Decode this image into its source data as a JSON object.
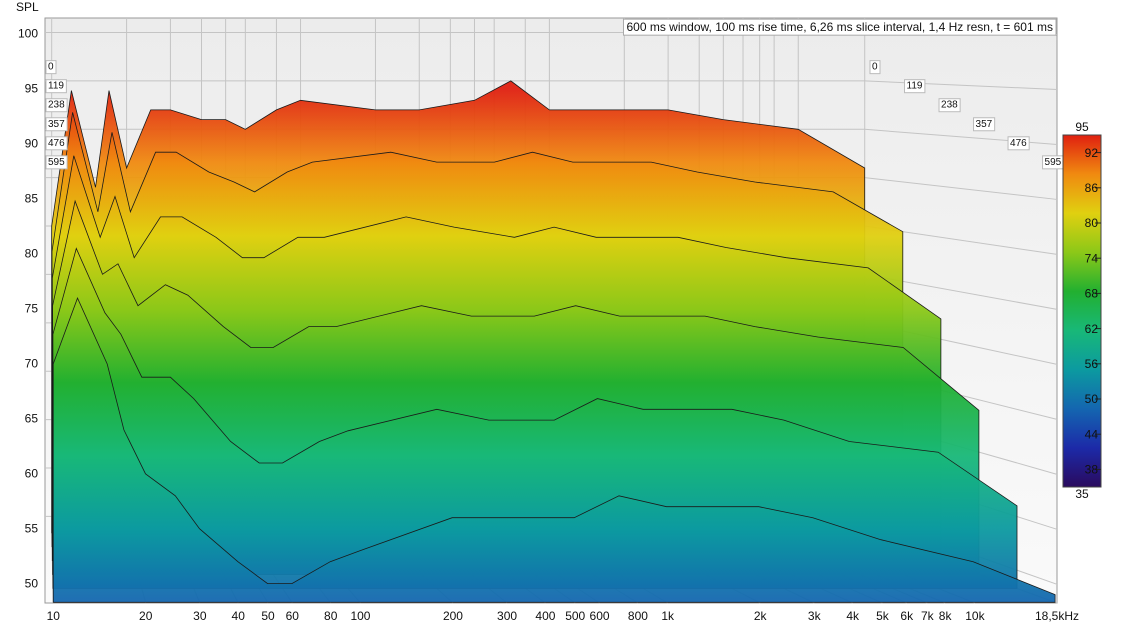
{
  "chart_data": {
    "type": "waterfall",
    "annotation": "600 ms window, 100 ms rise time, 6,26 ms slice interval, 1,4 Hz resn, t = 601 ms",
    "ylabel": "SPL",
    "x": [
      10,
      12,
      15,
      17,
      20,
      25,
      30,
      40,
      50,
      60,
      80,
      100,
      200,
      300,
      500,
      700,
      1000,
      2000,
      3000,
      5000,
      10000,
      18500
    ],
    "series": [
      {
        "z": 0,
        "values": [
          80,
          94,
          84,
          94,
          86,
          92,
          92,
          91,
          91,
          90,
          92,
          93,
          92,
          92,
          93,
          95,
          92,
          92,
          92,
          91,
          90,
          86
        ]
      },
      {
        "z": 119,
        "values": [
          78,
          92,
          82,
          90,
          82,
          88,
          88,
          86,
          85,
          84,
          86,
          87,
          88,
          87,
          87,
          88,
          87,
          87,
          86,
          85,
          84,
          80
        ]
      },
      {
        "z": 238,
        "values": [
          76,
          88,
          80,
          84,
          78,
          82,
          82,
          80,
          78,
          78,
          80,
          80,
          82,
          81,
          80,
          81,
          80,
          80,
          79,
          78,
          77,
          72
        ]
      },
      {
        "z": 357,
        "values": [
          74,
          84,
          77,
          78,
          74,
          76,
          75,
          72,
          70,
          70,
          72,
          72,
          74,
          73,
          73,
          74,
          73,
          73,
          72,
          71,
          70,
          64
        ]
      },
      {
        "z": 476,
        "values": [
          72,
          80,
          74,
          72,
          68,
          68,
          66,
          62,
          60,
          60,
          62,
          63,
          65,
          64,
          64,
          66,
          65,
          65,
          64,
          62,
          61,
          56
        ]
      },
      {
        "z": 595,
        "values": [
          70,
          76,
          70,
          64,
          60,
          58,
          55,
          52,
          50,
          50,
          52,
          53,
          56,
          56,
          56,
          58,
          57,
          57,
          56,
          54,
          52,
          49
        ]
      }
    ],
    "zlim": [
      0,
      601
    ],
    "xscale": "log",
    "xlim": [
      9.4,
      18500
    ],
    "xticks": [
      10,
      20,
      30,
      40,
      50,
      60,
      80,
      100,
      200,
      300,
      400,
      500,
      600,
      800,
      {
        "value": 1000,
        "label": "1k"
      },
      {
        "value": 2000,
        "label": "2k"
      },
      {
        "value": 3000,
        "label": "3k"
      },
      {
        "value": 4000,
        "label": "4k"
      },
      {
        "value": 5000,
        "label": "5k"
      },
      {
        "value": 6000,
        "label": "6k"
      },
      {
        "value": 7000,
        "label": "7k"
      },
      {
        "value": 8000,
        "label": "8k"
      },
      {
        "value": 10000,
        "label": "10k"
      },
      {
        "value": 18500,
        "label": "18,5kHz"
      }
    ],
    "ylim": [
      48.3,
      101.5
    ],
    "yticks": [
      50,
      55,
      60,
      65,
      70,
      75,
      80,
      85,
      90,
      95,
      100
    ],
    "grid": true,
    "colorbar": {
      "range": [
        35,
        95
      ],
      "ticks": [
        38,
        44,
        50,
        56,
        62,
        68,
        74,
        80,
        86,
        92
      ],
      "colors": [
        "#2a0a5e",
        "#1c2aa8",
        "#1466b0",
        "#0c9aa0",
        "#18b878",
        "#22b030",
        "#8cc818",
        "#e0d010",
        "#f08a10",
        "#e02010"
      ]
    }
  }
}
